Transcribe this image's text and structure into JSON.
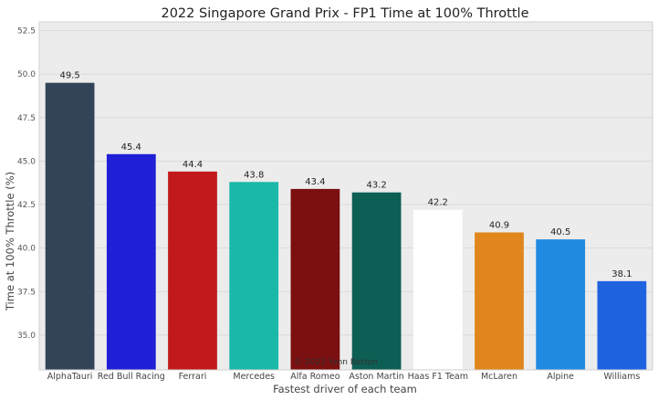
{
  "chart_data": {
    "type": "bar",
    "title": "2022 Singapore Grand Prix - FP1 Time at 100% Throttle",
    "xlabel": "Fastest driver of each team",
    "ylabel": "Time at 100% Throttle (%)",
    "ylim": [
      33.0,
      53.0
    ],
    "yticks": [
      35.0,
      37.5,
      40.0,
      42.5,
      45.0,
      47.5,
      50.0,
      52.5
    ],
    "ytick_labels": [
      "35.0",
      "37.5",
      "40.0",
      "42.5",
      "45.0",
      "47.5",
      "50.0",
      "52.5"
    ],
    "grid": true,
    "categories": [
      "AlphaTauri",
      "Red Bull Racing",
      "Ferrari",
      "Mercedes",
      "Alfa Romeo",
      "Aston Martin",
      "Haas F1 Team",
      "McLaren",
      "Alpine",
      "Williams"
    ],
    "values": [
      49.5,
      45.4,
      44.4,
      43.8,
      43.4,
      43.2,
      42.2,
      40.9,
      40.5,
      38.1
    ],
    "value_labels": [
      "49.5",
      "45.4",
      "44.4",
      "43.8",
      "43.4",
      "43.2",
      "42.2",
      "40.9",
      "40.5",
      "38.1"
    ],
    "colors": [
      "#334459",
      "#1f1fd8",
      "#c21a1a",
      "#1ab8a8",
      "#7a1010",
      "#0d5e55",
      "#ffffff",
      "#e0861c",
      "#1f8ae0",
      "#1f62e0"
    ],
    "annotation": "© 2022 Yann Betton"
  }
}
